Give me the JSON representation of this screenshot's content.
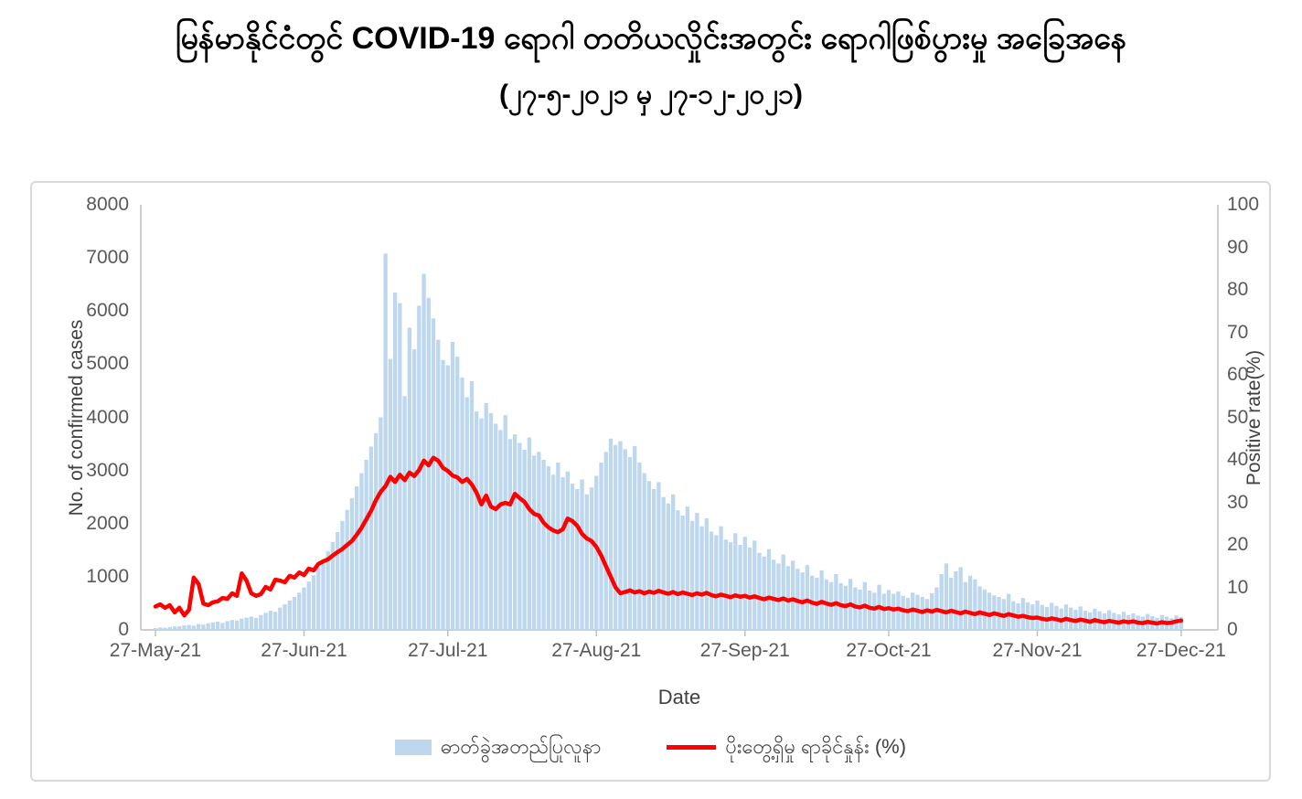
{
  "title": {
    "line1": "မြန်မာနိုင်ငံတွင် COVID-19 ရောဂါ တတိယလှိုင်းအတွင်း ရောဂါဖြစ်ပွားမှု အခြေအနေ",
    "line2": "(၂၇-၅-၂၀၂၁ မှ ၂၇-၁၂-၂၀၂၁)"
  },
  "chart": {
    "y_left_axis": {
      "title": "No. of confirmed cases",
      "ticks": [
        0,
        1000,
        2000,
        3000,
        4000,
        5000,
        6000,
        7000,
        8000
      ]
    },
    "y_right_axis": {
      "title": "Positive rate(%)",
      "ticks": [
        0,
        10,
        20,
        30,
        40,
        50,
        60,
        70,
        80,
        90,
        100
      ]
    },
    "x_axis": {
      "title": "Date",
      "tick_labels": [
        "27-May-21",
        "27-Jun-21",
        "27-Jul-21",
        "27-Aug-21",
        "27-Sep-21",
        "27-Oct-21",
        "27-Nov-21",
        "27-Dec-21"
      ],
      "tick_day_indices": [
        0,
        31,
        61,
        92,
        123,
        153,
        184,
        214
      ]
    },
    "legend": [
      {
        "label": "ဓာတ်ခွဲအတည်ပြုလူနာ",
        "color": "#BDD7EE",
        "type": "bar"
      },
      {
        "label": "ပိုးတွေ့ရှိမှု ရာခိုင်နှုန်း (%)",
        "color": "#FF0000",
        "type": "line"
      }
    ],
    "colors": {
      "bar": "#BDD7EE",
      "line": "#FF0000",
      "axis": "#BFBFBF",
      "tick_text": "#595959"
    }
  },
  "chart_data": {
    "type": "bar",
    "title": "မြန်မာနိုင်ငံတွင် COVID-19 ရောဂါ တတိယလှိုင်းအတွင်း ရောဂါဖြစ်ပွားမှု အခြေအနေ",
    "subtitle": "(၂၇-၅-၂၀၂၁ မှ ၂၇-၁၂-၂၀၂၁)",
    "xlabel": "Date",
    "ylabel_left": "No. of confirmed cases",
    "ylabel_right": "Positive rate(%)",
    "ylim_left": [
      0,
      8000
    ],
    "ylim_right": [
      0,
      100
    ],
    "x_start_label": "27-May-21",
    "x_end_label": "27-Dec-21",
    "x_frequency": "daily",
    "n_points": 215,
    "x_tick_labels": [
      "27-May-21",
      "27-Jun-21",
      "27-Jul-21",
      "27-Aug-21",
      "27-Sep-21",
      "27-Oct-21",
      "27-Nov-21",
      "27-Dec-21"
    ],
    "series": [
      {
        "name": "ဓာတ်ခွဲအတည်ပြုလူနာ",
        "type": "bar",
        "axis": "left",
        "color": "#BDD7EE",
        "values": [
          35,
          45,
          40,
          55,
          65,
          70,
          85,
          95,
          80,
          110,
          100,
          125,
          140,
          155,
          130,
          165,
          185,
          175,
          210,
          230,
          250,
          225,
          280,
          320,
          360,
          340,
          420,
          480,
          550,
          620,
          700,
          800,
          910,
          1030,
          1180,
          1320,
          1480,
          1650,
          1840,
          2050,
          2260,
          2480,
          2700,
          2950,
          3200,
          3450,
          3700,
          4000,
          7083,
          5100,
          6350,
          6150,
          4400,
          5690,
          5280,
          6100,
          6700,
          6250,
          5860,
          5460,
          5080,
          4980,
          5420,
          5140,
          4750,
          4380,
          4680,
          4110,
          3980,
          4270,
          4080,
          3880,
          3760,
          4040,
          3590,
          3680,
          3520,
          3390,
          3620,
          3280,
          3350,
          3200,
          3080,
          2920,
          3150,
          2870,
          2980,
          2750,
          2650,
          2830,
          2550,
          2680,
          2900,
          3150,
          3350,
          3600,
          3480,
          3550,
          3400,
          3250,
          3460,
          3150,
          2950,
          2800,
          2650,
          2780,
          2500,
          2380,
          2550,
          2250,
          2150,
          2320,
          2050,
          2200,
          1950,
          2100,
          1850,
          1780,
          1950,
          1700,
          1650,
          1820,
          1600,
          1750,
          1550,
          1680,
          1450,
          1380,
          1520,
          1320,
          1250,
          1420,
          1200,
          1300,
          1150,
          1080,
          1220,
          1020,
          980,
          1120,
          950,
          900,
          1050,
          880,
          830,
          960,
          800,
          760,
          900,
          740,
          700,
          850,
          680,
          750,
          680,
          720,
          640,
          600,
          700,
          660,
          620,
          580,
          690,
          800,
          1050,
          1250,
          980,
          1100,
          1180,
          900,
          1020,
          950,
          820,
          760,
          700,
          650,
          620,
          580,
          680,
          540,
          500,
          600,
          520,
          480,
          550,
          470,
          430,
          510,
          450,
          400,
          480,
          420,
          380,
          440,
          360,
          330,
          400,
          350,
          310,
          370,
          320,
          290,
          340,
          280,
          310,
          270,
          250,
          300,
          260,
          230,
          280,
          250,
          220,
          270,
          240
        ]
      },
      {
        "name": "ပိုးတွေ့ရှိမှု ရာခိုင်နှုန်း (%)",
        "type": "line",
        "axis": "right",
        "color": "#FF0000",
        "values": [
          5.5,
          6.0,
          5.2,
          5.8,
          4.1,
          5.2,
          3.4,
          4.7,
          12.3,
          10.8,
          6.2,
          5.8,
          6.5,
          6.7,
          7.5,
          7.3,
          8.6,
          8.0,
          13.3,
          11.6,
          8.6,
          8.0,
          8.4,
          10.1,
          9.5,
          11.8,
          11.6,
          11.2,
          12.7,
          12.3,
          13.5,
          12.9,
          14.4,
          14.0,
          15.5,
          16.1,
          16.6,
          17.5,
          18.3,
          19.0,
          20.0,
          20.9,
          22.4,
          24.0,
          26.0,
          28.0,
          30.5,
          32.5,
          33.8,
          36.0,
          34.8,
          36.5,
          35.2,
          37.0,
          36.2,
          37.6,
          39.8,
          38.7,
          40.5,
          39.8,
          38.1,
          37.4,
          36.3,
          35.9,
          34.8,
          35.5,
          34.2,
          32.3,
          29.5,
          31.6,
          29.0,
          28.4,
          29.5,
          29.9,
          29.5,
          32.0,
          31.0,
          30.1,
          28.4,
          27.3,
          26.9,
          25.2,
          24.1,
          23.4,
          23.0,
          23.7,
          26.2,
          25.6,
          24.5,
          22.6,
          21.5,
          20.9,
          19.5,
          17.5,
          15.0,
          12.5,
          10.0,
          8.6,
          8.9,
          9.3,
          8.8,
          9.1,
          8.6,
          9.0,
          8.7,
          9.2,
          8.8,
          8.5,
          8.9,
          8.4,
          8.8,
          8.5,
          8.2,
          8.6,
          8.3,
          8.7,
          8.2,
          7.9,
          8.3,
          8.0,
          7.7,
          8.1,
          7.8,
          8.0,
          7.6,
          7.9,
          7.5,
          7.2,
          7.6,
          7.3,
          7.0,
          7.4,
          6.9,
          7.2,
          6.8,
          6.5,
          6.9,
          6.4,
          6.1,
          6.6,
          6.2,
          5.9,
          6.3,
          5.8,
          5.6,
          6.0,
          5.5,
          5.3,
          5.7,
          5.2,
          5.0,
          5.4,
          4.9,
          5.1,
          4.8,
          5.0,
          4.6,
          4.4,
          4.8,
          4.5,
          4.2,
          4.6,
          4.3,
          4.7,
          4.4,
          4.1,
          4.5,
          4.2,
          3.9,
          4.3,
          4.0,
          3.7,
          4.1,
          3.8,
          3.5,
          3.9,
          3.6,
          3.3,
          3.7,
          3.4,
          3.1,
          3.3,
          3.0,
          2.8,
          2.9,
          2.6,
          2.4,
          2.7,
          2.5,
          2.2,
          2.6,
          2.3,
          2.1,
          2.4,
          2.2,
          1.9,
          2.3,
          2.0,
          1.8,
          2.1,
          1.9,
          1.7,
          2.0,
          1.8,
          2.0,
          1.7,
          1.6,
          1.9,
          1.7,
          1.5,
          1.8,
          1.6,
          1.7,
          2.0,
          2.2
        ]
      }
    ]
  }
}
